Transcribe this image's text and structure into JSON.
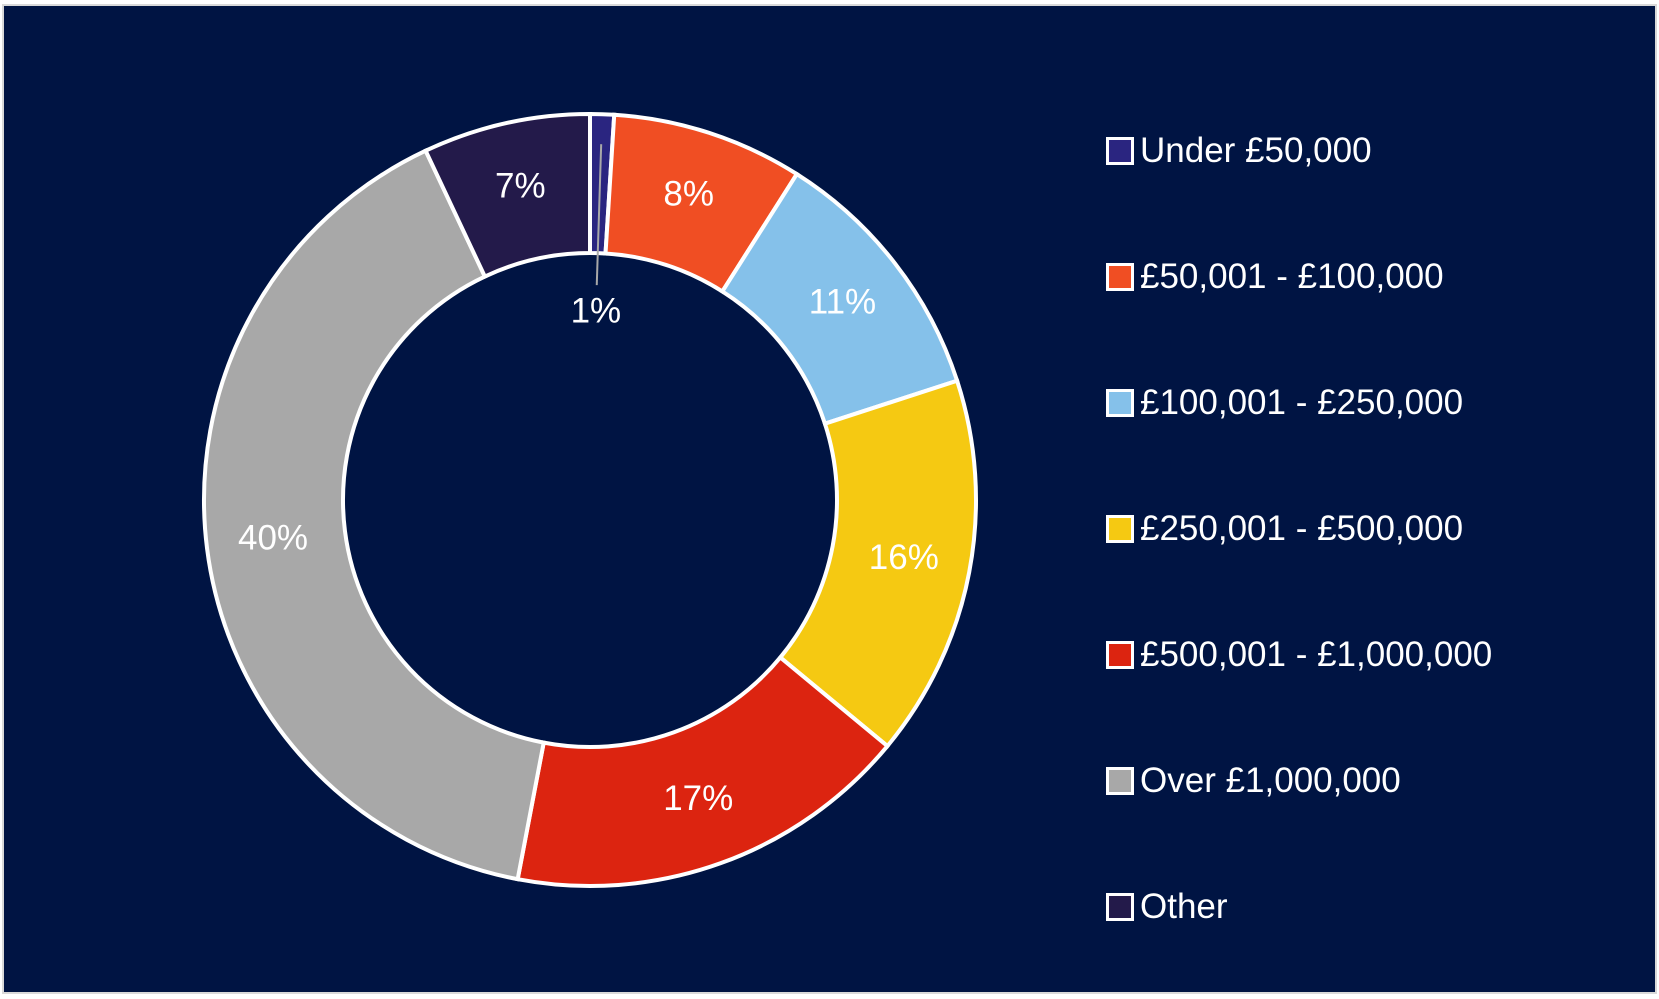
{
  "chart_data": {
    "type": "pie",
    "variant": "donut",
    "categories": [
      "Under £50,000",
      "£50,001 - £100,000",
      "£100,001 - £250,000",
      "£250,001 - £500,000",
      "£500,001 - £1,000,000",
      "Over £1,000,000",
      "Other"
    ],
    "values": [
      1,
      8,
      11,
      16,
      17,
      40,
      7
    ],
    "labels": [
      "1%",
      "8%",
      "11%",
      "16%",
      "17%",
      "40%",
      "7%"
    ],
    "colors": [
      "#2a2580",
      "#f04e23",
      "#85c1ea",
      "#f5c912",
      "#dc2410",
      "#a8a8a8",
      "#231a4a"
    ],
    "legend_position": "right",
    "background": "#001443"
  }
}
